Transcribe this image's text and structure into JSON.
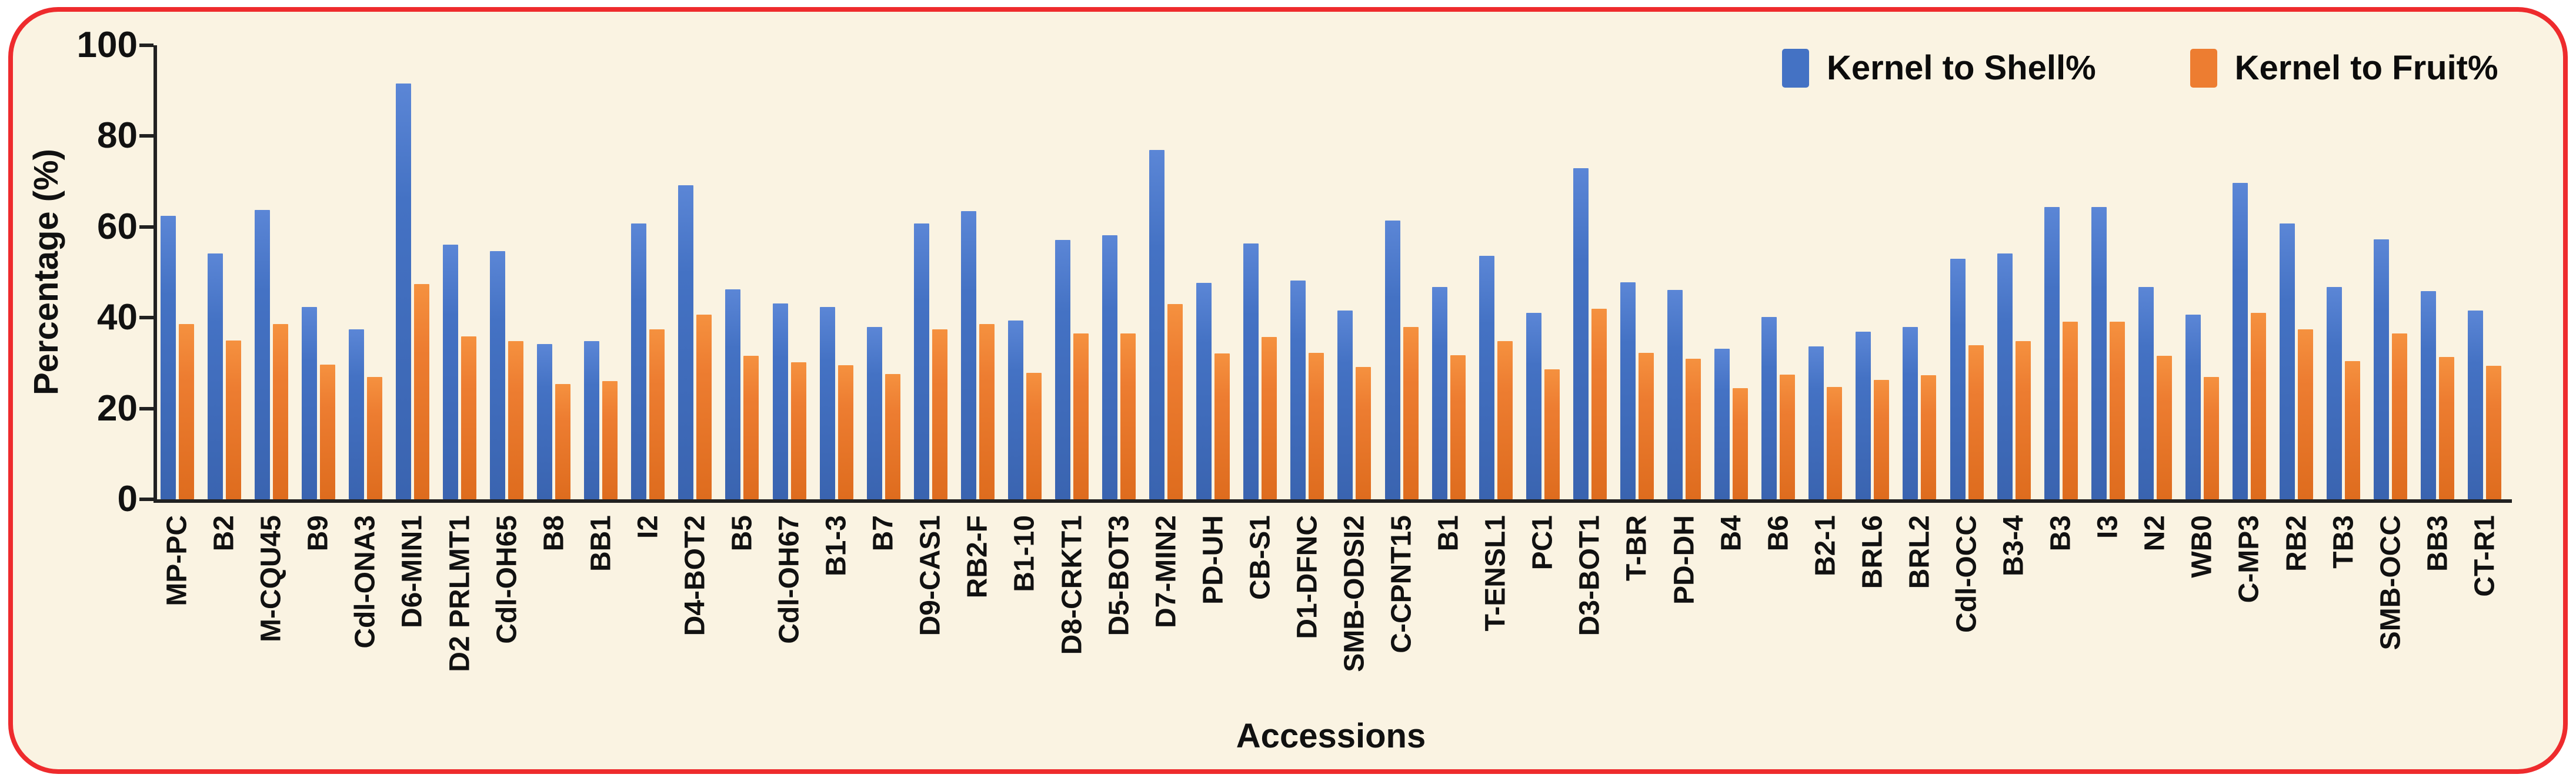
{
  "figure": {
    "panel_background": "#faf3e2",
    "border_color": "#ee2b2d",
    "axis_color": "#212121"
  },
  "chart_data": {
    "type": "bar",
    "title": "",
    "xlabel": "Accessions",
    "ylabel": "Percentage (%)",
    "ylim": [
      0,
      100
    ],
    "yticks": [
      0,
      20,
      40,
      60,
      80,
      100
    ],
    "grid": false,
    "legend_position": "top-right",
    "categories": [
      "MP-PC",
      "B2",
      "M-CQU45",
      "B9",
      "Cdl-ONA3",
      "D6-MIN1",
      "D2 PRLMT1",
      "Cdl-OH65",
      "B8",
      "BB1",
      "I2",
      "D4-BOT2",
      "B5",
      "Cdl-OH67",
      "B1-3",
      "B7",
      "D9-CAS1",
      "RB2-F",
      "B1-10",
      "D8-CRKT1",
      "D5-BOT3",
      "D7-MIN2",
      "PD-UH",
      "CB-S1",
      "D1-DFNC",
      "SMB-ODSI2",
      "C-CPNT15",
      "B1",
      "T-ENSL1",
      "PC1",
      "D3-BOT1",
      "T-BR",
      "PD-DH",
      "B4",
      "B6",
      "B2-1",
      "BRL6",
      "BRL2",
      "Cdl-OCC",
      "B3-4",
      "B3",
      "I3",
      "N2",
      "WB0",
      "C-MP3",
      "RB2",
      "TB3",
      "SMB-OCC",
      "BB3",
      "CT-R1"
    ],
    "series": [
      {
        "name": "Kernel to Shell%",
        "color": "#4472C4",
        "values": [
          62.4,
          54.2,
          63.7,
          42.3,
          37.5,
          91.6,
          56.1,
          54.7,
          34.2,
          34.8,
          60.8,
          69.2,
          46.2,
          43.2,
          42.3,
          38.0,
          60.8,
          63.5,
          39.4,
          57.1,
          58.2,
          76.9,
          47.7,
          56.3,
          48.2,
          41.6,
          61.4,
          46.7,
          53.6,
          41.0,
          72.9,
          47.8,
          46.1,
          33.2,
          40.2,
          33.7,
          36.9,
          38.0,
          53.0,
          54.2,
          64.4,
          64.4,
          46.7,
          40.7,
          69.7,
          60.8,
          46.7,
          57.2,
          45.8,
          41.6
        ]
      },
      {
        "name": "Kernel to Fruit%",
        "color": "#ED7D31",
        "values": [
          38.6,
          35.0,
          38.6,
          29.7,
          27.0,
          47.4,
          35.9,
          34.8,
          25.4,
          26.0,
          37.5,
          40.7,
          31.6,
          30.2,
          29.5,
          27.6,
          37.5,
          38.6,
          27.9,
          36.5,
          36.5,
          43.0,
          32.1,
          35.7,
          32.2,
          29.2,
          38.0,
          31.8,
          34.8,
          28.6,
          42.0,
          32.2,
          31.0,
          24.5,
          27.5,
          24.8,
          26.3,
          27.3,
          34.0,
          34.8,
          39.1,
          39.1,
          31.6,
          27.0,
          41.1,
          37.4,
          30.5,
          36.5,
          31.4,
          29.4
        ]
      }
    ]
  }
}
